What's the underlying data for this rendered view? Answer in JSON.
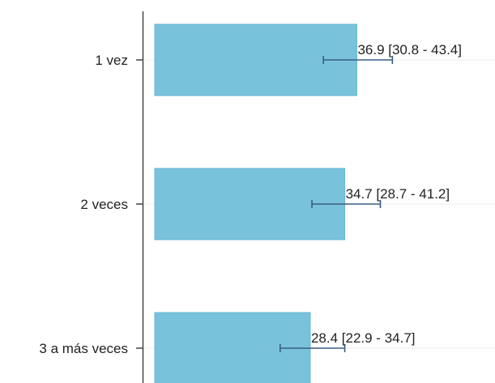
{
  "chart_data": {
    "type": "bar",
    "orientation": "horizontal",
    "categories": [
      "1 vez",
      "2 veces",
      "3 a más veces"
    ],
    "values": [
      36.9,
      34.7,
      28.4
    ],
    "ci_low": [
      30.8,
      28.7,
      22.9
    ],
    "ci_high": [
      43.4,
      41.2,
      34.7
    ],
    "data_labels": [
      "36.9 [30.8 - 43.4]",
      "34.7 [28.7 - 41.2]",
      "28.4 [22.9 - 34.7]"
    ],
    "title": "",
    "xlabel": "",
    "ylabel": "",
    "bar_color": "#78c2dc",
    "errorbar_color": "#3a5d84",
    "grid": false,
    "legend": "none"
  }
}
